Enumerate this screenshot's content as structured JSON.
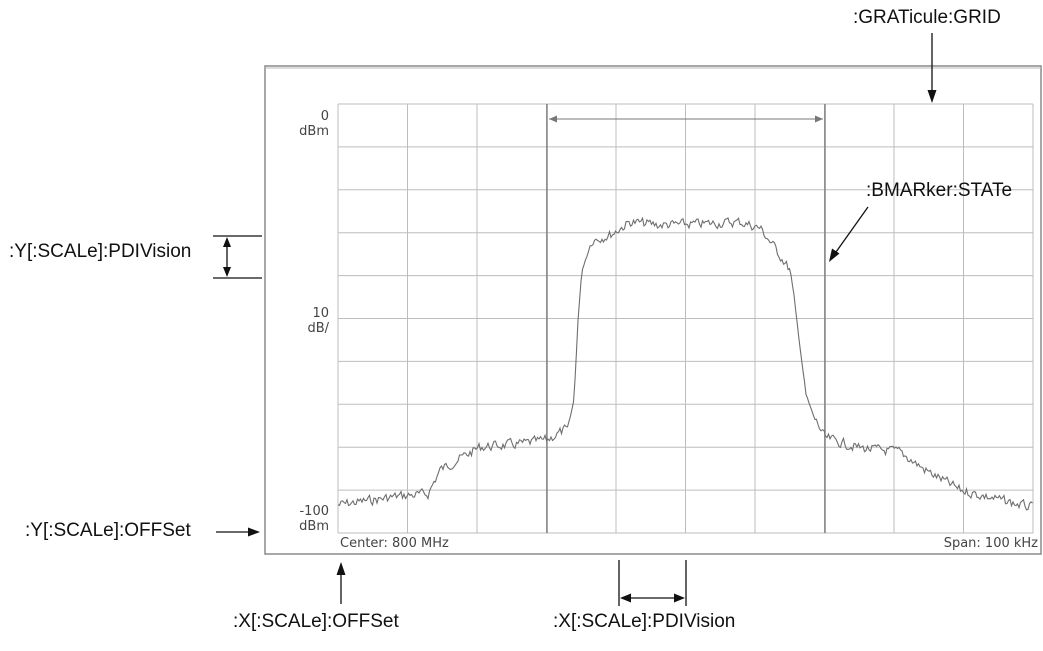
{
  "callouts": {
    "graticule_grid": ":GRATicule:GRID",
    "bmarker_state": ":BMARker:STATe",
    "y_pdivision": ":Y[:SCALe]:PDIVision",
    "y_offset": ":Y[:SCALe]:OFFSet",
    "x_offset": ":X[:SCALe]:OFFSet",
    "x_pdivision": ":X[:SCALe]:PDIVision"
  },
  "screen": {
    "y_top_value": "0",
    "y_top_unit": "dBm",
    "y_scale_value": "10",
    "y_scale_unit": "dB/",
    "y_bottom_value": "-100",
    "y_bottom_unit": "dBm",
    "center_text": "Center: 800 MHz",
    "span_text": "Span: 100 kHz"
  },
  "colors": {
    "grid": "#bdbdbd",
    "frame": "#8a8a8a",
    "trace": "#6e6e6e",
    "marker": "#777777",
    "callout_line": "#111111"
  }
}
